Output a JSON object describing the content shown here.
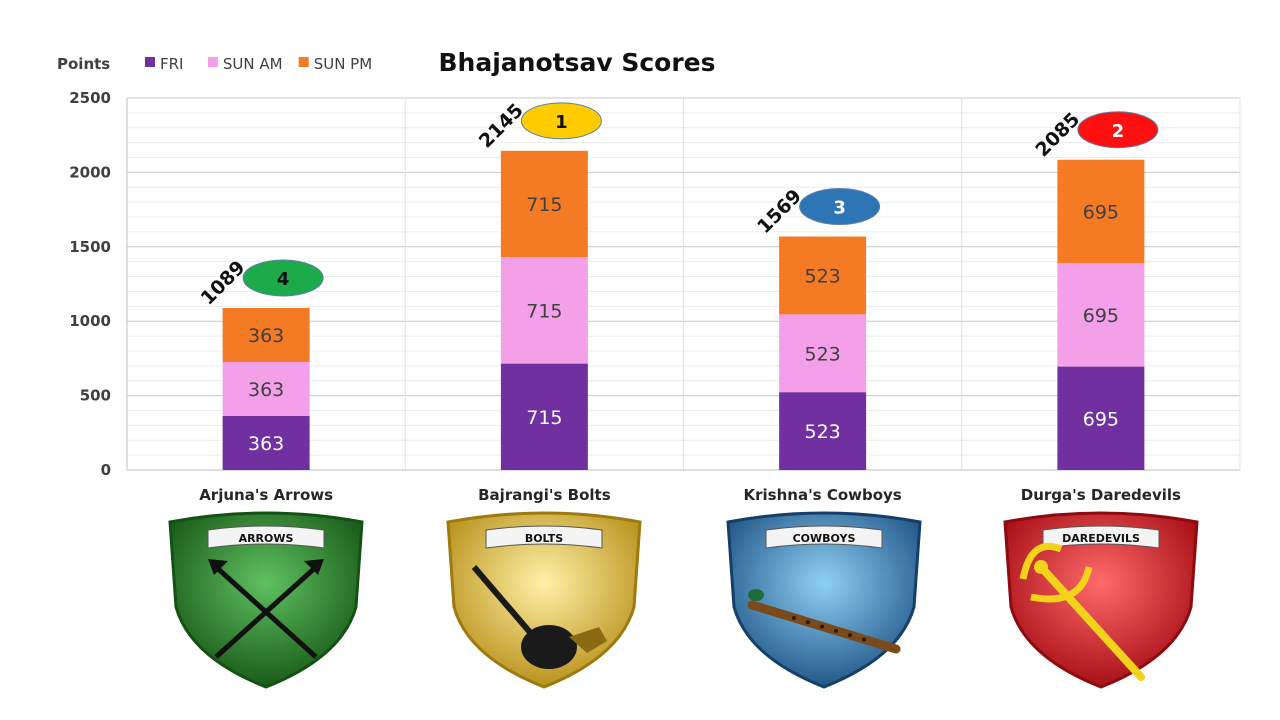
{
  "chart_data": {
    "type": "bar",
    "stacked": true,
    "title": "Bhajanotsav Scores",
    "ylabel": "Points",
    "xlabel": "",
    "ylim": [
      0,
      2500
    ],
    "yticks": [
      0,
      500,
      1000,
      1500,
      2000,
      2500
    ],
    "grid": true,
    "legend_position": "top-left",
    "categories": [
      "Arjuna's Arrows",
      "Bajrangi's Bolts",
      "Krishna's Cowboys",
      "Durga's Daredevils"
    ],
    "series": [
      {
        "name": "FRI",
        "color": "#7030A0",
        "values": [
          363,
          715,
          523,
          695
        ]
      },
      {
        "name": "SUN AM",
        "color": "#F4A0E8",
        "values": [
          363,
          715,
          523,
          695
        ]
      },
      {
        "name": "SUN PM",
        "color": "#F57A24",
        "values": [
          363,
          715,
          523,
          695
        ]
      }
    ],
    "totals": [
      1089,
      2145,
      1569,
      2085
    ],
    "ranks": [
      {
        "label": "4",
        "color": "#1DAA4A"
      },
      {
        "label": "1",
        "color": "#FFCC00"
      },
      {
        "label": "3",
        "color": "#2E75B6"
      },
      {
        "label": "2",
        "color": "#FF1010"
      }
    ]
  },
  "shields": [
    {
      "banner": "ARROWS",
      "color": "#2E8B2E",
      "dark": "#145214",
      "icon": "crossed-arrows-icon"
    },
    {
      "banner": "BOLTS",
      "color": "#F2CC3A",
      "dark": "#9C7A10",
      "icon": "mace-icon"
    },
    {
      "banner": "COWBOYS",
      "color": "#2E78B0",
      "dark": "#153F66",
      "icon": "flute-icon"
    },
    {
      "banner": "DAREDEVILS",
      "color": "#F0202A",
      "dark": "#8C0A10",
      "icon": "trident-icon"
    }
  ]
}
